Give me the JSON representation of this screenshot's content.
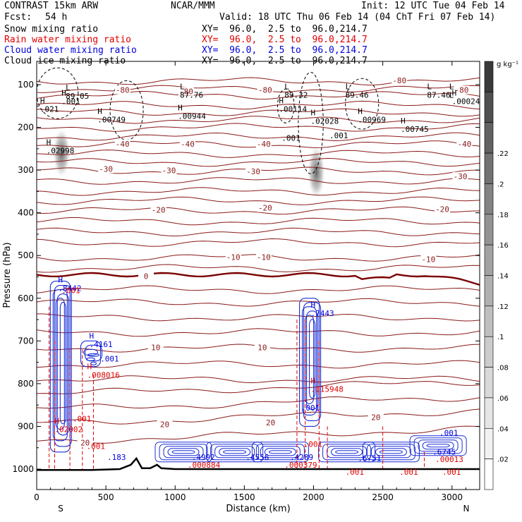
{
  "header": {
    "model": "CONTRAST 15km ARW",
    "org": "NCAR/MMM",
    "init": "Init: 12 UTC Tue 04 Feb 14",
    "fcst_label": "Fcst:",
    "fcst_value": "54 h",
    "valid": "Valid: 18 UTC Thu 06 Feb 14 (04 ChT Fri 07 Feb 14)",
    "fields": [
      {
        "name": "Snow mixing ratio",
        "xy": "XY=  96.0,  2.5 to  96.0,214.7",
        "color": "#000000"
      },
      {
        "name": "Rain water mixing ratio",
        "xy": "XY=  96.0,  2.5 to  96.0,214.7",
        "color": "#e00000"
      },
      {
        "name": "Cloud water mixing ratio",
        "xy": "XY=  96.0,  2.5 to  96.0,214.7",
        "color": "#0000dd"
      },
      {
        "name": "Cloud ice mixing ratio",
        "xy": "XY=  96.0,  2.5 to  96.0,214.7",
        "color": "#000000"
      }
    ]
  },
  "chart_data": {
    "type": "cross-section",
    "xlabel": "Distance (km)",
    "ylabel": "Pressure (hPa)",
    "xlim": [
      0,
      3200
    ],
    "ylim": [
      1050,
      50
    ],
    "xticks": [
      0,
      500,
      1000,
      1500,
      2000,
      2500,
      3000
    ],
    "yticks": [
      100,
      200,
      300,
      400,
      500,
      600,
      700,
      800,
      900,
      1000
    ],
    "x_end_labels": {
      "left": "S",
      "right": "N"
    },
    "colorbar": {
      "unit": "g kg⁻¹",
      "ticks": [
        ".02",
        ".04",
        ".06",
        ".08",
        ".1",
        ".12",
        ".14",
        ".16",
        ".18",
        ".2",
        ".22"
      ],
      "colors": [
        "#ffffff",
        "#f2f2f2",
        "#e6e6e6",
        "#d9d9d9",
        "#cccccc",
        "#bfbfbf",
        "#b0b0b0",
        "#a2a2a2",
        "#939393",
        "#838383",
        "#727272",
        "#626262",
        "#4f4f4f",
        "#3a3a3a"
      ]
    },
    "temperature_contours": {
      "color": "#8b1a1a",
      "levels": [
        -80,
        -70,
        -60,
        -50,
        -40,
        -30,
        -20,
        -10,
        0,
        10,
        20
      ],
      "labels": [
        {
          "text": "-80",
          "x": 2620,
          "p": 92
        },
        {
          "text": "-80",
          "x": 3070,
          "p": 114
        },
        {
          "text": "-80",
          "x": 620,
          "p": 114
        },
        {
          "text": "-80",
          "x": 1650,
          "p": 114
        },
        {
          "text": "-80",
          "x": 1080,
          "p": 117
        },
        {
          "text": "-40",
          "x": 620,
          "p": 240
        },
        {
          "text": "-40",
          "x": 1090,
          "p": 240
        },
        {
          "text": "-40",
          "x": 1640,
          "p": 240
        },
        {
          "text": "-40",
          "x": 3090,
          "p": 240
        },
        {
          "text": "-30",
          "x": 500,
          "p": 299
        },
        {
          "text": "-30",
          "x": 955,
          "p": 302
        },
        {
          "text": "-30",
          "x": 1565,
          "p": 305
        },
        {
          "text": "-30",
          "x": 3060,
          "p": 316
        },
        {
          "text": "-20",
          "x": 880,
          "p": 395
        },
        {
          "text": "-20",
          "x": 1650,
          "p": 390
        },
        {
          "text": "-20",
          "x": 2930,
          "p": 393
        },
        {
          "text": "-10",
          "x": 1420,
          "p": 505
        },
        {
          "text": "-10",
          "x": 1640,
          "p": 505
        },
        {
          "text": "-10",
          "x": 2830,
          "p": 510
        },
        {
          "text": "0",
          "x": 790,
          "p": 550
        },
        {
          "text": "10",
          "x": 860,
          "p": 717
        },
        {
          "text": "10",
          "x": 1630,
          "p": 717
        },
        {
          "text": "20",
          "x": 925,
          "p": 897
        },
        {
          "text": "20",
          "x": 1690,
          "p": 893
        },
        {
          "text": "20",
          "x": 2450,
          "p": 880
        },
        {
          "text": "20",
          "x": 350,
          "p": 940
        }
      ]
    },
    "cloud_ice_extrema": [
      {
        "kind": "L",
        "x": 230,
        "p": 130,
        "value": "89.05"
      },
      {
        "kind": "L",
        "x": 1055,
        "p": 127,
        "value": "87.76"
      },
      {
        "kind": "L",
        "x": 1810,
        "p": 127,
        "value": "89.32"
      },
      {
        "kind": "L",
        "x": 2250,
        "p": 127,
        "value": "89.46"
      },
      {
        "kind": "L",
        "x": 2840,
        "p": 127,
        "value": "87.46"
      },
      {
        "kind": "L",
        "x": 3000,
        "p": 127,
        "value": "L"
      },
      {
        "kind": "H",
        "x": 200,
        "p": 142,
        "value": ".001"
      },
      {
        "kind": "H",
        "x": 3020,
        "p": 142,
        "value": ".00024"
      },
      {
        "kind": "H",
        "x": 1770,
        "p": 160,
        "value": ".00114"
      },
      {
        "kind": "H",
        "x": 1040,
        "p": 177,
        "value": ".00944"
      },
      {
        "kind": "H",
        "x": 45,
        "p": 160,
        "value": ".021"
      },
      {
        "kind": "H",
        "x": 460,
        "p": 185,
        "value": ".00749"
      },
      {
        "kind": "H",
        "x": 2000,
        "p": 188,
        "value": ".02028"
      },
      {
        "kind": "H",
        "x": 2340,
        "p": 185,
        "value": ".00969"
      },
      {
        "kind": "H",
        "x": 2650,
        "p": 207,
        "value": ".00745"
      },
      {
        "kind": "H",
        "x": 90,
        "p": 258,
        "value": ".02998"
      },
      {
        "kind": "",
        "x": 1790,
        "p": 228,
        "value": ".001"
      },
      {
        "kind": "",
        "x": 2135,
        "p": 222,
        "value": ".001"
      }
    ],
    "cloud_water_labels": [
      {
        "kind": "H",
        "x": 175,
        "p": 580,
        "value": ".8442"
      },
      {
        "kind": "H",
        "x": 2000,
        "p": 638,
        "value": ".7443"
      },
      {
        "kind": "H",
        "x": 400,
        "p": 711,
        "value": ".4161"
      },
      {
        "kind": "",
        "x": 1140,
        "p": 975,
        "value": ".4992"
      },
      {
        "kind": "",
        "x": 1530,
        "p": 975,
        "value": ".4556"
      },
      {
        "kind": "",
        "x": 1850,
        "p": 975,
        "value": ".4289"
      },
      {
        "kind": "",
        "x": 2340,
        "p": 978,
        "value": ".6751"
      },
      {
        "kind": "",
        "x": 2880,
        "p": 963,
        "value": ".6745"
      },
      {
        "kind": "",
        "x": 530,
        "p": 975,
        "value": ".183"
      },
      {
        "kind": "",
        "x": 480,
        "p": 745,
        "value": ".001"
      },
      {
        "kind": "",
        "x": 1930,
        "p": 860,
        "value": ".001"
      },
      {
        "kind": "",
        "x": 2930,
        "p": 918,
        "value": ".001"
      }
    ],
    "rain_water_labels": [
      {
        "kind": "H",
        "x": 385,
        "p": 783,
        "value": ".008016"
      },
      {
        "kind": "H",
        "x": 2000,
        "p": 816,
        "value": ".015948"
      },
      {
        "kind": "H",
        "x": 150,
        "p": 910,
        "value": ".02002"
      },
      {
        "kind": "",
        "x": 1110,
        "p": 993,
        "value": ".000884"
      },
      {
        "kind": "",
        "x": 1810,
        "p": 993,
        "value": ".000379"
      },
      {
        "kind": "",
        "x": 2900,
        "p": 980,
        "value": ".00013"
      },
      {
        "kind": "",
        "x": 380,
        "p": 950,
        "value": ".001"
      },
      {
        "kind": "",
        "x": 1950,
        "p": 945,
        "value": ".001"
      },
      {
        "kind": "",
        "x": 2250,
        "p": 1010,
        "value": ".001"
      },
      {
        "kind": "",
        "x": 2640,
        "p": 1010,
        "value": ".001"
      },
      {
        "kind": "",
        "x": 2950,
        "p": 1010,
        "value": ".001"
      },
      {
        "kind": "",
        "x": 280,
        "p": 885,
        "value": ".001"
      },
      {
        "kind": "",
        "x": 200,
        "p": 585,
        "value": ".001"
      }
    ],
    "terrain": {
      "x": [
        0,
        200,
        400,
        600,
        680,
        720,
        760,
        820,
        870,
        900,
        1000,
        1500,
        2000,
        2500,
        3000,
        3200
      ],
      "p": [
        1002,
        1002,
        1002,
        1000,
        990,
        975,
        998,
        998,
        990,
        998,
        1000,
        1000,
        1000,
        1000,
        1000,
        1000
      ]
    },
    "snow_plumes": [
      {
        "x": 180,
        "p_top": 200,
        "p_bot": 320
      },
      {
        "x": 2020,
        "p_top": 240,
        "p_bot": 370
      }
    ]
  }
}
